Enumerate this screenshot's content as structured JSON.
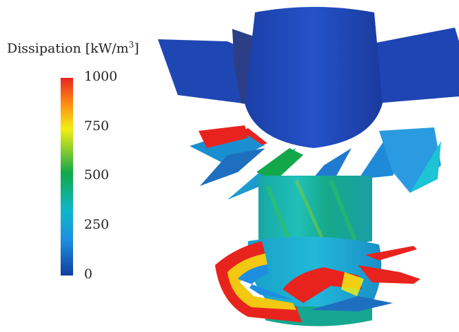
{
  "legend": {
    "title": "Dissipation [kW/m",
    "title_superscript": "3",
    "title_close": "]",
    "ticks": [
      "1000",
      "750",
      "500",
      "250",
      "0"
    ],
    "colormap": [
      "#0f3f9f",
      "#1e8fe0",
      "#0fb7c8",
      "#12a84a",
      "#f2ef12",
      "#ff8d14",
      "#e8231e"
    ]
  }
}
